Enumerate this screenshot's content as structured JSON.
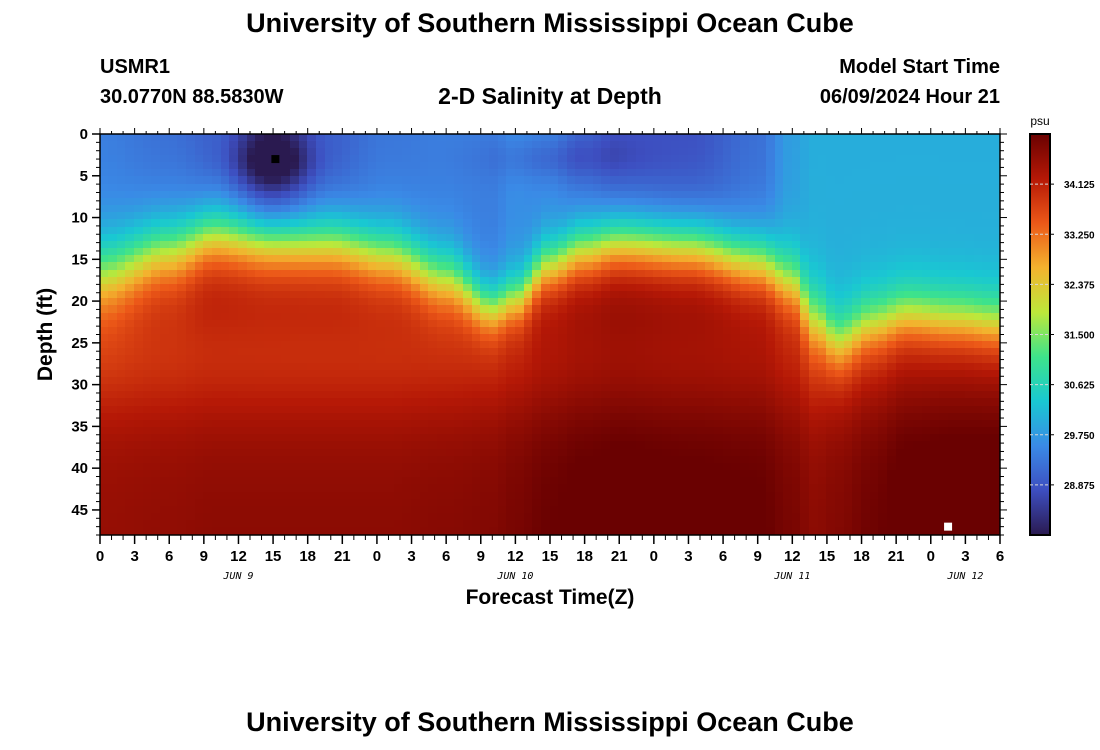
{
  "header": {
    "title": "University of Southern Mississippi Ocean Cube",
    "station": "USMR1",
    "coordinates": "30.0770N  88.5830W",
    "subtitle": "2-D Salinity at Depth",
    "model_start_label": "Model Start Time",
    "model_start_value": "06/09/2024 Hour 21"
  },
  "footer": {
    "title": "University of Southern Mississippi Ocean Cube"
  },
  "chart_data": {
    "type": "heatmap",
    "title": "2-D Salinity at Depth",
    "xlabel": "Forecast Time(Z)",
    "ylabel": "Depth (ft)",
    "x_ticks": [
      "0",
      "3",
      "6",
      "9",
      "12",
      "15",
      "18",
      "21",
      "0",
      "3",
      "6",
      "9",
      "12",
      "15",
      "18",
      "21",
      "0",
      "3",
      "6",
      "9",
      "12",
      "15",
      "18",
      "21",
      "0",
      "3",
      "6"
    ],
    "x_range_hours": [
      0,
      78
    ],
    "date_labels": [
      {
        "label": "JUN 9",
        "hour": 12
      },
      {
        "label": "JUN 10",
        "hour": 36
      },
      {
        "label": "JUN 11",
        "hour": 60
      },
      {
        "label": "JUN 12",
        "hour": 75
      }
    ],
    "y_ticks": [
      0,
      5,
      10,
      15,
      20,
      25,
      30,
      35,
      40,
      45
    ],
    "ylim": [
      0,
      48
    ],
    "y_inverted": true,
    "colorbar": {
      "label": "psu",
      "ticks": [
        "34.125",
        "33.250",
        "32.375",
        "31.500",
        "30.625",
        "29.750",
        "28.875"
      ],
      "tick_values": [
        34.125,
        33.25,
        32.375,
        31.5,
        30.625,
        29.75,
        28.875
      ],
      "range": [
        28.0,
        35.0
      ],
      "colors": [
        "#2a1a50",
        "#3d4ec0",
        "#3a8ae6",
        "#19c8d2",
        "#3ee38a",
        "#bde83a",
        "#f3b22e",
        "#ec5818",
        "#b51806",
        "#6a0101"
      ]
    },
    "markers": [
      {
        "hour": 15.2,
        "depth": 3,
        "color": "#000000"
      },
      {
        "hour": 73.5,
        "depth": 47,
        "color": "#ffffff"
      }
    ],
    "profiles": {
      "hours": [
        0,
        6,
        10,
        15,
        20,
        25,
        30,
        34,
        36,
        39,
        42,
        45,
        51,
        57,
        60,
        62,
        64,
        67,
        70,
        74,
        78
      ],
      "surface_psu": [
        29.4,
        29.2,
        29.0,
        28.2,
        29.0,
        29.3,
        29.4,
        29.4,
        29.6,
        29.5,
        29.1,
        28.8,
        28.8,
        29.2,
        29.8,
        30.0,
        30.0,
        30.0,
        30.0,
        30.0,
        30.0
      ],
      "halocline_ft": [
        17,
        14,
        12,
        12.5,
        13,
        14.5,
        17.5,
        21,
        20,
        16,
        14,
        13,
        13.5,
        15.5,
        18,
        22.5,
        25,
        23,
        22,
        22.5,
        23
      ],
      "thickness_ft": [
        6,
        5.5,
        5,
        5,
        5,
        5,
        5,
        4,
        4,
        4.5,
        5,
        5,
        5,
        5,
        5,
        5,
        4.5,
        4.5,
        4.5,
        4.5,
        4.5
      ],
      "deep_psu": [
        34.3,
        34.35,
        34.4,
        34.4,
        34.4,
        34.4,
        34.45,
        34.5,
        34.6,
        34.75,
        34.85,
        34.9,
        34.85,
        34.8,
        34.6,
        34.4,
        34.5,
        34.7,
        34.9,
        34.95,
        34.95
      ]
    },
    "surface_lows": [
      {
        "hour": 15,
        "depth": 3.5,
        "sigma_h": 2.5,
        "sigma_d": 2.2,
        "amount": 0.8
      },
      {
        "hour": 40,
        "depth": 3.0,
        "sigma_h": 4.5,
        "sigma_d": 1.8,
        "amount": 0.4
      }
    ]
  }
}
